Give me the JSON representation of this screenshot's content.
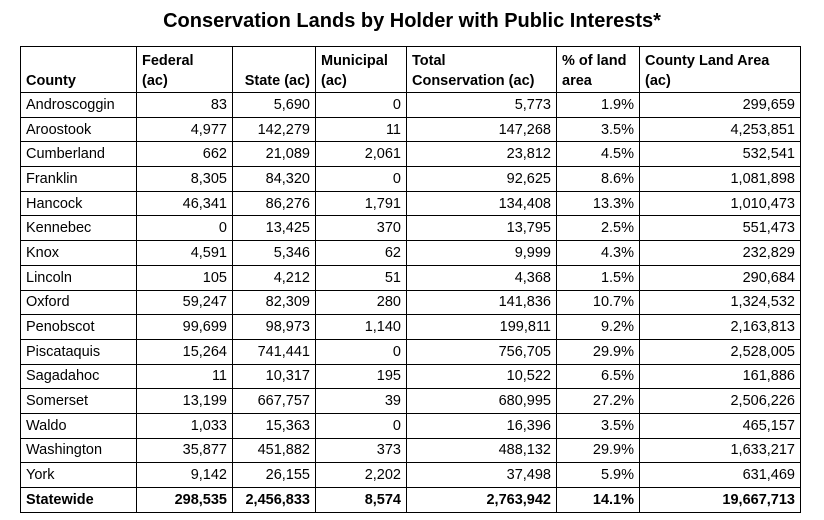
{
  "title": "Conservation Lands by Holder with Public Interests*",
  "table": {
    "headers": [
      "County",
      "Federal\n(ac)",
      "State (ac)",
      "Municipal\n(ac)",
      "Total\nConservation (ac)",
      "% of land\narea",
      "County Land Area\n(ac)"
    ],
    "rows": [
      [
        "Androscoggin",
        "83",
        "5,690",
        "0",
        "5,773",
        "1.9%",
        "299,659"
      ],
      [
        "Aroostook",
        "4,977",
        "142,279",
        "11",
        "147,268",
        "3.5%",
        "4,253,851"
      ],
      [
        "Cumberland",
        "662",
        "21,089",
        "2,061",
        "23,812",
        "4.5%",
        "532,541"
      ],
      [
        "Franklin",
        "8,305",
        "84,320",
        "0",
        "92,625",
        "8.6%",
        "1,081,898"
      ],
      [
        "Hancock",
        "46,341",
        "86,276",
        "1,791",
        "134,408",
        "13.3%",
        "1,010,473"
      ],
      [
        "Kennebec",
        "0",
        "13,425",
        "370",
        "13,795",
        "2.5%",
        "551,473"
      ],
      [
        "Knox",
        "4,591",
        "5,346",
        "62",
        "9,999",
        "4.3%",
        "232,829"
      ],
      [
        "Lincoln",
        "105",
        "4,212",
        "51",
        "4,368",
        "1.5%",
        "290,684"
      ],
      [
        "Oxford",
        "59,247",
        "82,309",
        "280",
        "141,836",
        "10.7%",
        "1,324,532"
      ],
      [
        "Penobscot",
        "99,699",
        "98,973",
        "1,140",
        "199,811",
        "9.2%",
        "2,163,813"
      ],
      [
        "Piscataquis",
        "15,264",
        "741,441",
        "0",
        "756,705",
        "29.9%",
        "2,528,005"
      ],
      [
        "Sagadahoc",
        "11",
        "10,317",
        "195",
        "10,522",
        "6.5%",
        "161,886"
      ],
      [
        "Somerset",
        "13,199",
        "667,757",
        "39",
        "680,995",
        "27.2%",
        "2,506,226"
      ],
      [
        "Waldo",
        "1,033",
        "15,363",
        "0",
        "16,396",
        "3.5%",
        "465,157"
      ],
      [
        "Washington",
        "35,877",
        "451,882",
        "373",
        "488,132",
        "29.9%",
        "1,633,217"
      ],
      [
        "York",
        "9,142",
        "26,155",
        "2,202",
        "37,498",
        "5.9%",
        "631,469"
      ]
    ],
    "total_row": [
      "Statewide",
      "298,535",
      "2,456,833",
      "8,574",
      "2,763,942",
      "14.1%",
      "19,667,713"
    ]
  }
}
